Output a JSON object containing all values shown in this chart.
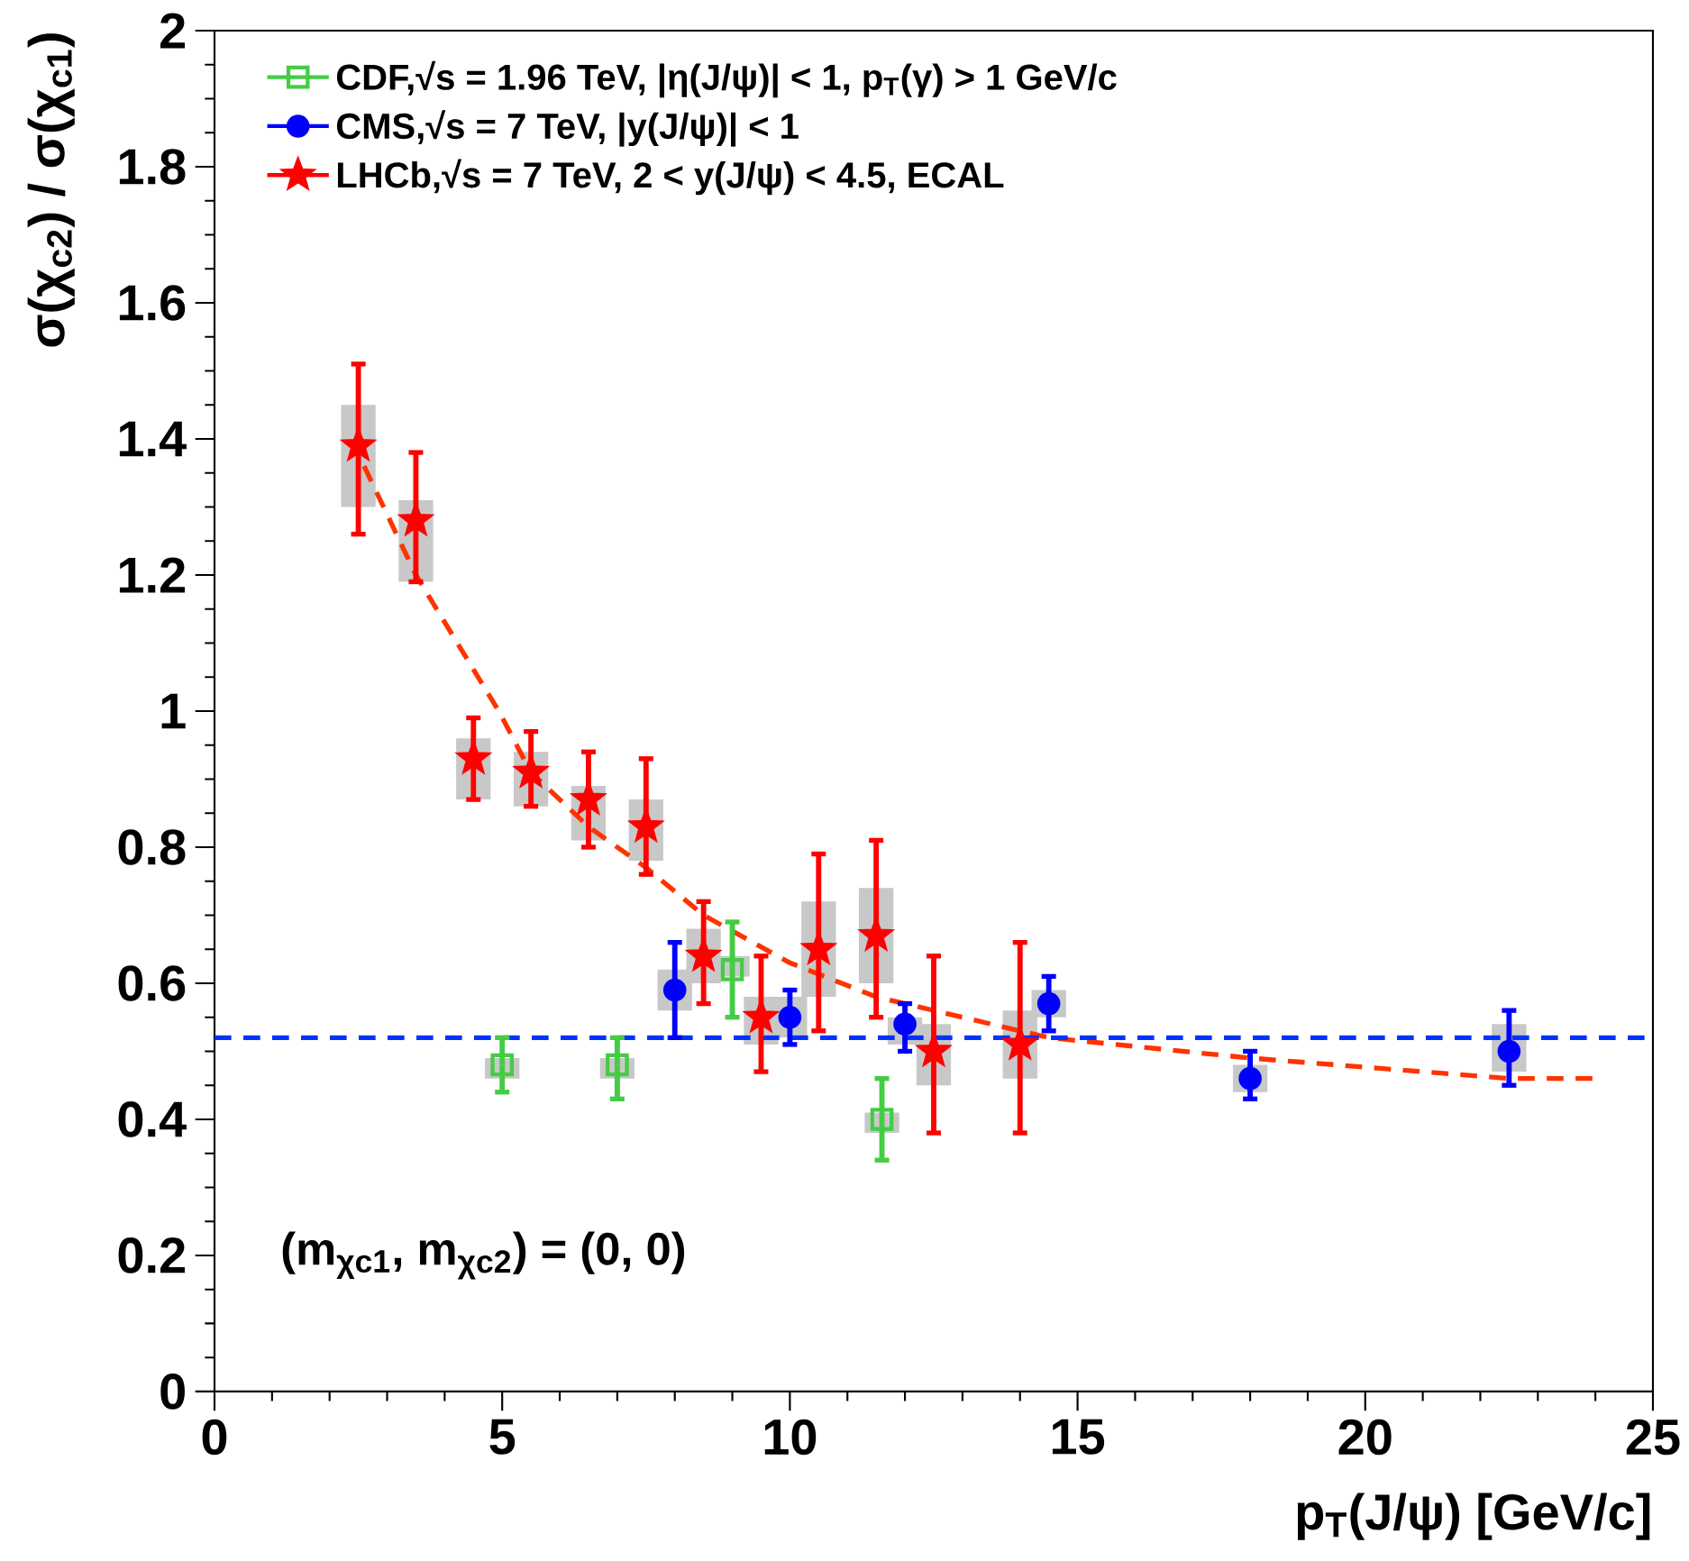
{
  "chart_data": {
    "type": "scatter",
    "xlabel": "p$_{T}$(J/ψ) [GeV/c]",
    "ylabel": "σ(χ$_{c2}$) / σ(χ$_{c1}$)",
    "xlim": [
      0,
      25
    ],
    "ylim": [
      0,
      2
    ],
    "xticks": [
      0,
      5,
      10,
      15,
      20,
      25
    ],
    "yticks": [
      0,
      0.2,
      0.4,
      0.6,
      0.8,
      1,
      1.2,
      1.4,
      1.6,
      1.8,
      2
    ],
    "legend": "top left",
    "grid": false,
    "annotations": [
      "(m$_{χc1}$, m$_{χc2}$) = (0, 0)"
    ],
    "ref_lines": [
      {
        "axis": "y",
        "value": 0.52,
        "color": "#0033ff",
        "line_style": "dashed"
      }
    ],
    "series": [
      {
        "type": "bar",
        "color": "#c8c8c8",
        "x": [
          2.5,
          3.5,
          4.5,
          5,
          5.5,
          6.5,
          7,
          7.5,
          8,
          8.5,
          9,
          9.5,
          10,
          10.5,
          11.5,
          11.6,
          12,
          12.5,
          14,
          14.5,
          18,
          22.5
        ],
        "base": [
          1.3,
          1.19,
          0.87,
          0.46,
          0.86,
          0.81,
          0.46,
          0.78,
          0.56,
          0.6,
          0.61,
          0.51,
          0.52,
          0.58,
          0.6,
          0.38,
          0.51,
          0.45,
          0.46,
          0.55,
          0.44,
          0.47
        ],
        "values": [
          0.15,
          0.12,
          0.09,
          0.03,
          0.08,
          0.08,
          0.03,
          0.09,
          0.06,
          0.08,
          0.03,
          0.07,
          0.06,
          0.14,
          0.14,
          0.03,
          0.04,
          0.09,
          0.1,
          0.04,
          0.04,
          0.07
        ]
      },
      {
        "type": "line",
        "color": "#ff3300",
        "line_style": "dashed",
        "marker": "none",
        "x": [
          2.6,
          3.5,
          4.94,
          5.5,
          6.5,
          7.5,
          8.5,
          10,
          11.5,
          13,
          14.5,
          18,
          22.5,
          24
        ],
        "values": [
          1.36,
          1.2,
          1.0,
          0.91,
          0.83,
          0.77,
          0.7,
          0.63,
          0.58,
          0.55,
          0.52,
          0.49,
          0.46,
          0.46
        ]
      },
      {
        "name": "CDF,√s = 1.96 TeV, |η(J/ψ)| < 1, p$_{T}$(γ) > 1 GeV/c",
        "color": "#44cc44",
        "marker": "square",
        "x": [
          5,
          7,
          9,
          11.6
        ],
        "values": [
          0.48,
          0.48,
          0.62,
          0.4
        ],
        "errors": [
          [
            0.44,
            0.52
          ],
          [
            0.43,
            0.52
          ],
          [
            0.55,
            0.69
          ],
          [
            0.34,
            0.46
          ]
        ]
      },
      {
        "name": "CMS,√s = 7 TeV, |y(J/ψ)| < 1",
        "color": "#0000ff",
        "marker": "circle",
        "x": [
          8,
          10,
          12,
          14.5,
          18,
          22.5
        ],
        "values": [
          0.59,
          0.55,
          0.54,
          0.57,
          0.46,
          0.5
        ],
        "errors": [
          [
            0.52,
            0.66
          ],
          [
            0.51,
            0.59
          ],
          [
            0.5,
            0.57
          ],
          [
            0.53,
            0.61
          ],
          [
            0.43,
            0.5
          ],
          [
            0.45,
            0.56
          ]
        ]
      },
      {
        "name": "LHCb,√s = 7 TeV, 2 < y(J/ψ) < 4.5, ECAL",
        "color": "#ff0000",
        "marker": "star",
        "x": [
          2.5,
          3.5,
          4.5,
          5.5,
          6.5,
          7.5,
          8.5,
          9.5,
          10.5,
          11.5,
          12.5,
          14
        ],
        "values": [
          1.39,
          1.28,
          0.93,
          0.91,
          0.87,
          0.83,
          0.64,
          0.55,
          0.65,
          0.67,
          0.5,
          0.51
        ],
        "errors": [
          [
            1.26,
            1.51
          ],
          [
            1.19,
            1.38
          ],
          [
            0.87,
            0.99
          ],
          [
            0.86,
            0.97
          ],
          [
            0.8,
            0.94
          ],
          [
            0.76,
            0.93
          ],
          [
            0.57,
            0.72
          ],
          [
            0.47,
            0.64
          ],
          [
            0.53,
            0.79
          ],
          [
            0.55,
            0.81
          ],
          [
            0.38,
            0.64
          ],
          [
            0.38,
            0.66
          ]
        ]
      }
    ]
  }
}
